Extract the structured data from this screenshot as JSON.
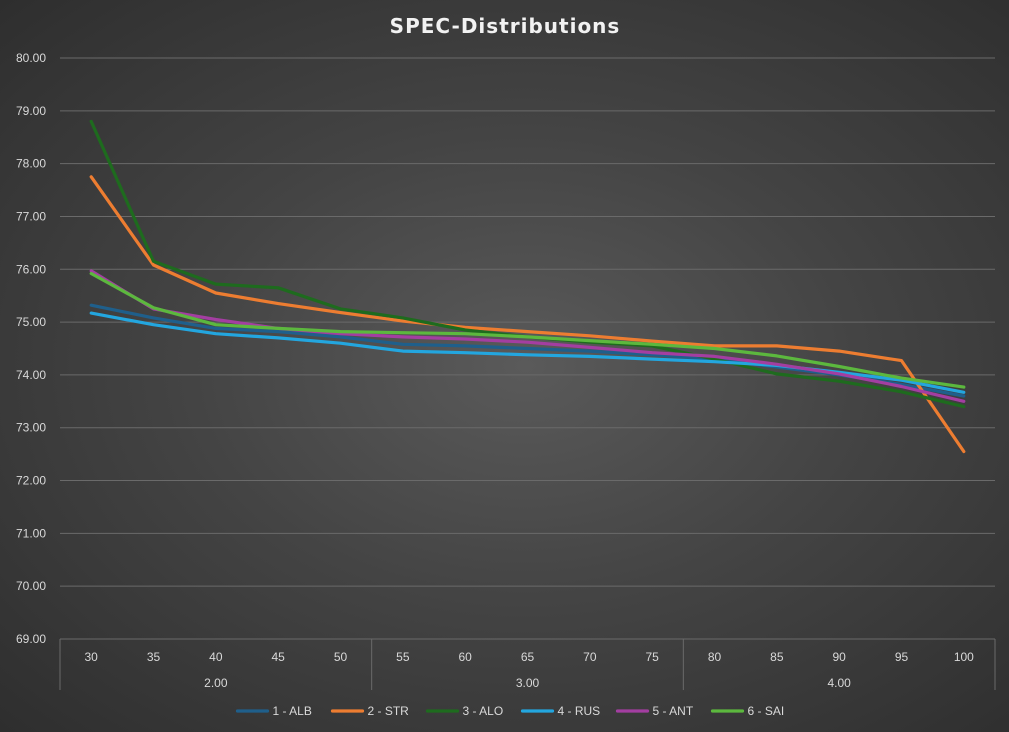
{
  "chart_data": {
    "type": "line",
    "title": "SPEC-Distributions",
    "xlabel": "",
    "ylabel": "",
    "x": [
      "30",
      "35",
      "40",
      "45",
      "50",
      "55",
      "60",
      "65",
      "70",
      "75",
      "80",
      "85",
      "90",
      "95",
      "100"
    ],
    "groups": [
      {
        "label": "2.00",
        "start": 0,
        "end": 4
      },
      {
        "label": "3.00",
        "start": 5,
        "end": 9
      },
      {
        "label": "4.00",
        "start": 10,
        "end": 14
      }
    ],
    "ylim": [
      69,
      80
    ],
    "yticks": [
      "69.00",
      "70.00",
      "71.00",
      "72.00",
      "73.00",
      "74.00",
      "75.00",
      "76.00",
      "77.00",
      "78.00",
      "79.00",
      "80.00"
    ],
    "grid": true,
    "legend_position": "bottom",
    "series": [
      {
        "name": "1 - ALB",
        "color": "#1f5f8b",
        "values": [
          75.32,
          75.08,
          74.88,
          74.82,
          74.72,
          74.58,
          74.55,
          74.5,
          74.45,
          74.38,
          74.3,
          74.15,
          74.0,
          73.82,
          73.6
        ]
      },
      {
        "name": "2 - STR",
        "color": "#ed7d31",
        "values": [
          77.75,
          76.08,
          75.55,
          75.35,
          75.18,
          75.02,
          74.9,
          74.82,
          74.74,
          74.64,
          74.55,
          74.55,
          74.45,
          74.27,
          72.55
        ]
      },
      {
        "name": "3 - ALO",
        "color": "#1e6b1e",
        "values": [
          78.8,
          76.15,
          75.72,
          75.65,
          75.25,
          75.08,
          74.85,
          74.72,
          74.62,
          74.55,
          74.3,
          74.02,
          73.88,
          73.68,
          73.4
        ]
      },
      {
        "name": "4 - RUS",
        "color": "#23a6df",
        "values": [
          75.17,
          74.95,
          74.78,
          74.7,
          74.6,
          74.45,
          74.42,
          74.38,
          74.35,
          74.3,
          74.25,
          74.18,
          74.05,
          73.9,
          73.67
        ]
      },
      {
        "name": "5 - ANT",
        "color": "#a33ea1",
        "values": [
          75.97,
          75.25,
          75.05,
          74.88,
          74.78,
          74.72,
          74.68,
          74.62,
          74.52,
          74.42,
          74.35,
          74.2,
          74.02,
          73.78,
          73.5
        ]
      },
      {
        "name": "6 - SAI",
        "color": "#5cb83e",
        "values": [
          75.92,
          75.27,
          74.95,
          74.88,
          74.82,
          74.8,
          74.78,
          74.72,
          74.65,
          74.58,
          74.5,
          74.36,
          74.16,
          73.94,
          73.77
        ]
      }
    ]
  }
}
